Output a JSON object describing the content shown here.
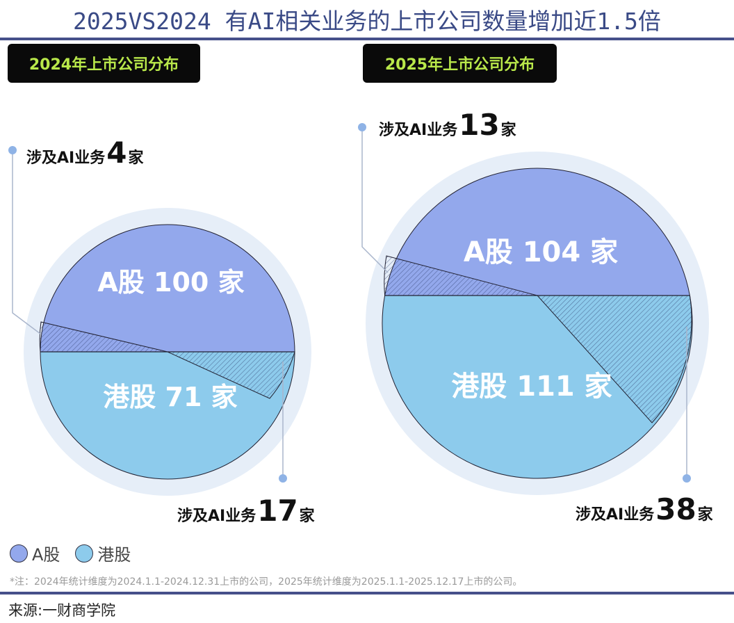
{
  "title": "2025VS2024 有AI相关业务的上市公司数量增加近1.5倍",
  "colors": {
    "a_share": "#93a8ec",
    "hk_share": "#8dcbec",
    "halo": "#e6eef8",
    "title": "#3a4a86",
    "badge_text": "#b9e84a"
  },
  "chart_data": [
    {
      "type": "pie",
      "title": "2024年上市公司分布",
      "categories": [
        "A股",
        "港股"
      ],
      "values": [
        100,
        71
      ],
      "slice_labels": [
        "A股 100 家",
        "港股 71 家"
      ],
      "ai_related": {
        "A股": 4,
        "港股": 17
      },
      "ai_labels": [
        {
          "prefix": "涉及AI业务",
          "value": "4",
          "suffix": "家"
        },
        {
          "prefix": "涉及AI业务",
          "value": "17",
          "suffix": "家"
        }
      ]
    },
    {
      "type": "pie",
      "title": "2025年上市公司分布",
      "categories": [
        "A股",
        "港股"
      ],
      "values": [
        104,
        111
      ],
      "slice_labels": [
        "A股 104 家",
        "港股 111 家"
      ],
      "ai_related": {
        "A股": 13,
        "港股": 38
      },
      "ai_labels": [
        {
          "prefix": "涉及AI业务",
          "value": "13",
          "suffix": "家"
        },
        {
          "prefix": "涉及AI业务",
          "value": "38",
          "suffix": "家"
        }
      ]
    }
  ],
  "legend": [
    "A股",
    "港股"
  ],
  "note": "*注：2024年统计维度为2024.1.1-2024.12.31上市的公司，2025年统计维度为2025.1.1-2025.12.17上市的公司。",
  "source": "来源:一财商学院"
}
